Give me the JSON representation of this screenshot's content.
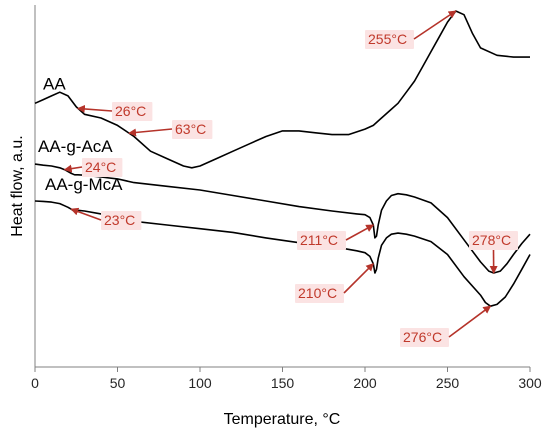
{
  "chart_data": {
    "type": "line",
    "xlabel": "Temperature, °C",
    "ylabel": "Heat flow, a.u.",
    "xlim": [
      0,
      300
    ],
    "x_ticks": [
      0,
      50,
      100,
      150,
      200,
      250,
      300
    ],
    "y_ticks_shown": false,
    "grid": false,
    "legend": "none",
    "series": [
      {
        "name": "AA",
        "x": [
          0,
          5,
          10,
          15,
          20,
          25,
          30,
          40,
          50,
          60,
          70,
          80,
          90,
          95,
          100,
          110,
          120,
          130,
          140,
          150,
          160,
          170,
          180,
          190,
          200,
          205,
          210,
          215,
          220,
          225,
          230,
          235,
          240,
          245,
          250,
          255,
          260,
          265,
          270,
          280,
          290,
          300
        ],
        "y": [
          0.75,
          0.76,
          0.77,
          0.78,
          0.77,
          0.74,
          0.72,
          0.71,
          0.69,
          0.66,
          0.62,
          0.6,
          0.58,
          0.575,
          0.58,
          0.6,
          0.62,
          0.64,
          0.66,
          0.675,
          0.675,
          0.67,
          0.665,
          0.665,
          0.68,
          0.69,
          0.71,
          0.73,
          0.75,
          0.78,
          0.81,
          0.85,
          0.89,
          0.93,
          0.97,
          1.0,
          0.99,
          0.94,
          0.9,
          0.88,
          0.875,
          0.875
        ]
      },
      {
        "name": "AA-g-AcA",
        "x": [
          0,
          5,
          10,
          15,
          18,
          20,
          22,
          24,
          26,
          30,
          40,
          50,
          60,
          80,
          100,
          120,
          140,
          160,
          180,
          195,
          200,
          203,
          205,
          206,
          207,
          208,
          210,
          213,
          216,
          220,
          225,
          230,
          240,
          250,
          260,
          270,
          275,
          278,
          282,
          286,
          290,
          295,
          300
        ],
        "y": [
          0.585,
          0.582,
          0.58,
          0.575,
          0.57,
          0.565,
          0.56,
          0.556,
          0.556,
          0.555,
          0.55,
          0.545,
          0.535,
          0.525,
          0.515,
          0.5,
          0.485,
          0.47,
          0.458,
          0.45,
          0.448,
          0.44,
          0.42,
          0.385,
          0.39,
          0.42,
          0.46,
          0.485,
          0.5,
          0.505,
          0.502,
          0.496,
          0.48,
          0.44,
          0.38,
          0.32,
          0.295,
          0.29,
          0.295,
          0.315,
          0.34,
          0.37,
          0.395
        ]
      },
      {
        "name": "AA-g-McA",
        "x": [
          0,
          5,
          10,
          15,
          18,
          20,
          22,
          23,
          26,
          30,
          40,
          50,
          60,
          80,
          100,
          120,
          140,
          160,
          180,
          195,
          200,
          203,
          205,
          206,
          207,
          208,
          210,
          213,
          216,
          220,
          225,
          230,
          240,
          250,
          260,
          270,
          273,
          276,
          280,
          285,
          290,
          295,
          300
        ],
        "y": [
          0.485,
          0.484,
          0.482,
          0.478,
          0.472,
          0.468,
          0.463,
          0.46,
          0.46,
          0.458,
          0.45,
          0.44,
          0.43,
          0.42,
          0.41,
          0.4,
          0.385,
          0.372,
          0.362,
          0.35,
          0.345,
          0.335,
          0.315,
          0.29,
          0.3,
          0.33,
          0.365,
          0.385,
          0.395,
          0.398,
          0.395,
          0.39,
          0.375,
          0.34,
          0.28,
          0.23,
          0.21,
          0.2,
          0.205,
          0.225,
          0.26,
          0.3,
          0.34
        ]
      }
    ],
    "annotations": [
      {
        "text": "26°C",
        "series": "AA",
        "x": 26
      },
      {
        "text": "63°C",
        "series": "AA",
        "x": 57
      },
      {
        "text": "255°C",
        "series": "AA",
        "x": 255
      },
      {
        "text": "24°C",
        "series": "AA-g-AcA",
        "x": 18
      },
      {
        "text": "211°C",
        "series": "AA-g-AcA",
        "x": 205
      },
      {
        "text": "278°C",
        "series": "AA-g-AcA",
        "x": 278
      },
      {
        "text": "23°C",
        "series": "AA-g-McA",
        "x": 22
      },
      {
        "text": "210°C",
        "series": "AA-g-McA",
        "x": 205
      },
      {
        "text": "276°C",
        "series": "AA-g-McA",
        "x": 276
      }
    ],
    "colors": {
      "line": "#000000",
      "axis": "#808080",
      "annotation_text": "#c0392b",
      "annotation_box": "#fbe3e3",
      "annotation_arrow": "#b5332a"
    }
  }
}
